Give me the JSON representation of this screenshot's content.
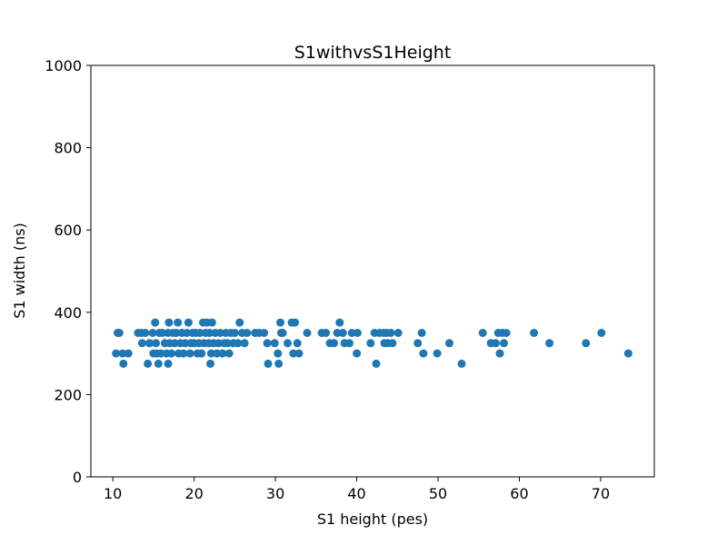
{
  "chart_data": {
    "type": "scatter",
    "title": "S1withvsS1Height",
    "xlabel": "S1 height (pes)",
    "ylabel": "S1 width (ns)",
    "xlim": [
      7.3,
      76.6
    ],
    "ylim": [
      0,
      1000
    ],
    "xticks": [
      10,
      20,
      30,
      40,
      50,
      60,
      70
    ],
    "yticks": [
      0,
      200,
      400,
      600,
      800,
      1000
    ],
    "grid": false,
    "marker_color": "#1f77b4",
    "series": [
      {
        "points": [
          [
            10.4,
            300
          ],
          [
            10.6,
            350
          ],
          [
            10.8,
            350
          ],
          [
            11.2,
            300
          ],
          [
            11.3,
            275
          ],
          [
            11.9,
            300
          ],
          [
            13.1,
            350
          ],
          [
            13.5,
            350
          ],
          [
            13.6,
            325
          ],
          [
            14.0,
            350
          ],
          [
            14.3,
            275
          ],
          [
            14.5,
            325
          ],
          [
            14.9,
            350
          ],
          [
            15.0,
            300
          ],
          [
            15.2,
            375
          ],
          [
            15.3,
            325
          ],
          [
            15.4,
            300
          ],
          [
            15.6,
            275
          ],
          [
            15.7,
            350
          ],
          [
            15.9,
            300
          ],
          [
            16.1,
            350
          ],
          [
            16.4,
            325
          ],
          [
            16.6,
            300
          ],
          [
            16.8,
            350
          ],
          [
            16.8,
            275
          ],
          [
            16.9,
            375
          ],
          [
            17.0,
            325
          ],
          [
            17.2,
            300
          ],
          [
            17.4,
            350
          ],
          [
            17.6,
            325
          ],
          [
            17.8,
            350
          ],
          [
            18.0,
            375
          ],
          [
            18.1,
            300
          ],
          [
            18.3,
            325
          ],
          [
            18.5,
            350
          ],
          [
            18.7,
            300
          ],
          [
            18.9,
            325
          ],
          [
            19.1,
            350
          ],
          [
            19.3,
            375
          ],
          [
            19.5,
            300
          ],
          [
            19.6,
            325
          ],
          [
            19.8,
            350
          ],
          [
            20.0,
            325
          ],
          [
            20.2,
            350
          ],
          [
            20.4,
            300
          ],
          [
            20.6,
            325
          ],
          [
            20.7,
            350
          ],
          [
            20.9,
            300
          ],
          [
            21.1,
            375
          ],
          [
            21.2,
            325
          ],
          [
            21.4,
            350
          ],
          [
            21.6,
            375
          ],
          [
            21.8,
            325
          ],
          [
            21.9,
            350
          ],
          [
            22.0,
            275
          ],
          [
            22.1,
            300
          ],
          [
            22.2,
            375
          ],
          [
            22.4,
            325
          ],
          [
            22.6,
            350
          ],
          [
            22.8,
            300
          ],
          [
            23.0,
            325
          ],
          [
            23.2,
            350
          ],
          [
            23.5,
            300
          ],
          [
            23.7,
            325
          ],
          [
            23.9,
            350
          ],
          [
            24.1,
            325
          ],
          [
            24.3,
            300
          ],
          [
            24.5,
            350
          ],
          [
            24.8,
            325
          ],
          [
            25.0,
            350
          ],
          [
            25.4,
            325
          ],
          [
            25.6,
            375
          ],
          [
            25.9,
            350
          ],
          [
            26.2,
            325
          ],
          [
            26.5,
            350
          ],
          [
            27.5,
            350
          ],
          [
            28.0,
            350
          ],
          [
            28.6,
            350
          ],
          [
            29.0,
            325
          ],
          [
            29.1,
            275
          ],
          [
            29.9,
            325
          ],
          [
            30.3,
            300
          ],
          [
            30.4,
            275
          ],
          [
            30.6,
            375
          ],
          [
            30.7,
            350
          ],
          [
            30.9,
            350
          ],
          [
            31.5,
            325
          ],
          [
            32.0,
            375
          ],
          [
            32.2,
            300
          ],
          [
            32.4,
            375
          ],
          [
            32.7,
            325
          ],
          [
            32.9,
            300
          ],
          [
            33.9,
            350
          ],
          [
            35.7,
            350
          ],
          [
            36.2,
            350
          ],
          [
            36.7,
            325
          ],
          [
            37.2,
            325
          ],
          [
            37.6,
            350
          ],
          [
            37.9,
            375
          ],
          [
            38.3,
            350
          ],
          [
            38.5,
            325
          ],
          [
            39.1,
            325
          ],
          [
            39.4,
            350
          ],
          [
            40.0,
            300
          ],
          [
            40.1,
            350
          ],
          [
            41.7,
            325
          ],
          [
            42.2,
            350
          ],
          [
            42.4,
            275
          ],
          [
            42.8,
            350
          ],
          [
            43.3,
            350
          ],
          [
            43.4,
            325
          ],
          [
            43.7,
            350
          ],
          [
            43.8,
            325
          ],
          [
            44.2,
            350
          ],
          [
            44.4,
            325
          ],
          [
            45.1,
            350
          ],
          [
            47.5,
            325
          ],
          [
            48.0,
            350
          ],
          [
            48.2,
            300
          ],
          [
            49.9,
            300
          ],
          [
            51.4,
            325
          ],
          [
            52.9,
            275
          ],
          [
            55.5,
            350
          ],
          [
            56.5,
            325
          ],
          [
            57.1,
            325
          ],
          [
            57.4,
            350
          ],
          [
            57.6,
            300
          ],
          [
            57.9,
            350
          ],
          [
            58.1,
            325
          ],
          [
            58.4,
            350
          ],
          [
            61.8,
            350
          ],
          [
            63.7,
            325
          ],
          [
            68.2,
            325
          ],
          [
            70.1,
            350
          ],
          [
            73.4,
            300
          ]
        ]
      }
    ]
  }
}
